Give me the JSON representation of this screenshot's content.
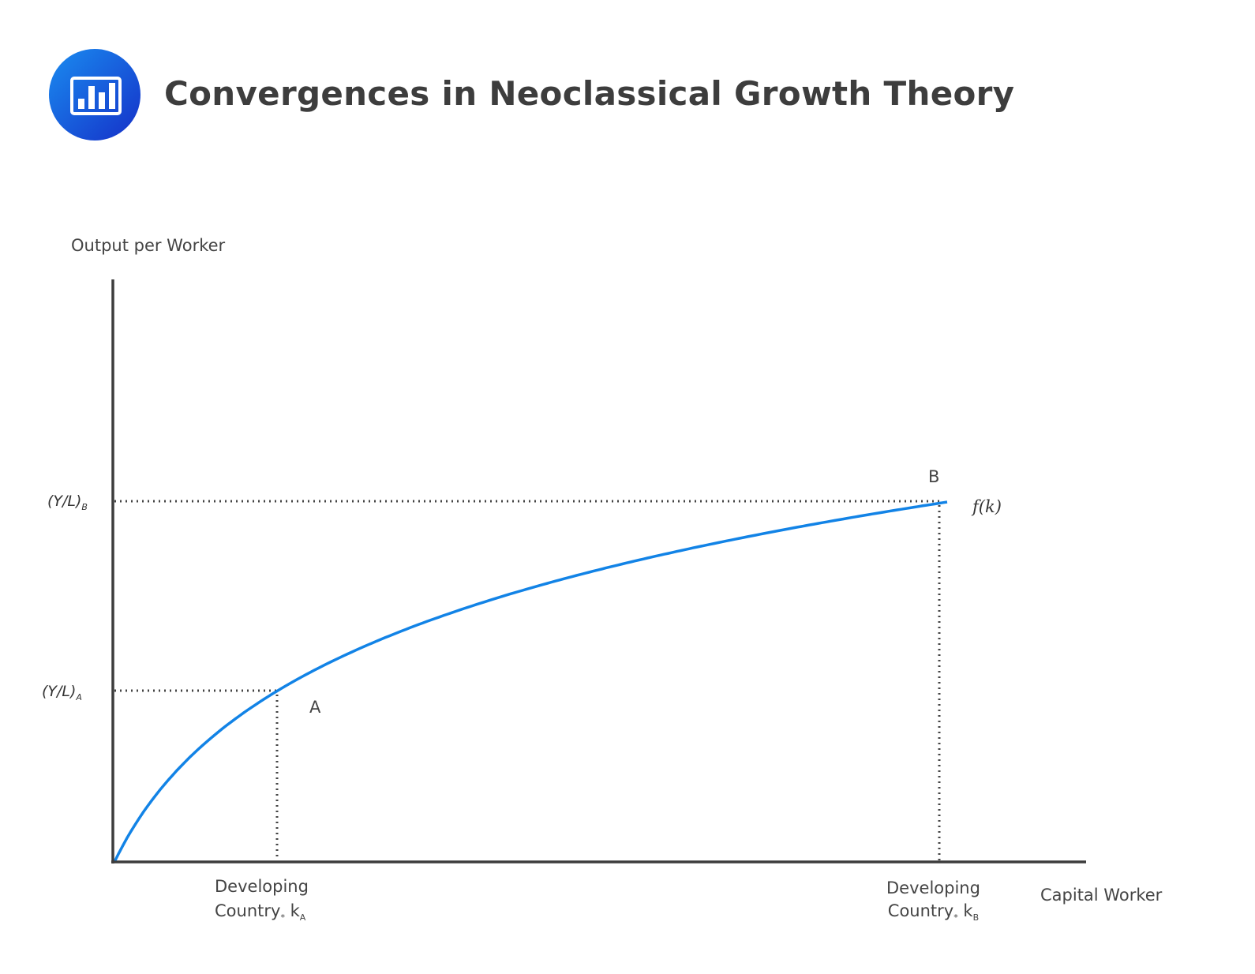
{
  "header": {
    "title": "Convergences in Neoclassical Growth Theory",
    "icon": "bar-chart-icon"
  },
  "diagram": {
    "y_axis_label": "Output per Worker",
    "x_axis_label": "Capital Worker",
    "curve_label": "f(k)",
    "point_a_label": "A",
    "point_b_label": "B",
    "y_tick_a": {
      "text": "(Y/L)",
      "sub": "A"
    },
    "y_tick_b": {
      "text": "(Y/L)",
      "sub": "B"
    },
    "x_tick_a": {
      "line1": "Developing",
      "line2": "Country",
      "star": "*",
      "k": "k",
      "sub": "A"
    },
    "x_tick_b": {
      "line1": "Developing",
      "line2": "Country",
      "star": "*",
      "k": "k",
      "sub": "B"
    },
    "colors": {
      "curve": "#1283e6",
      "axis": "#3d3d3d",
      "guide": "#444444"
    }
  }
}
